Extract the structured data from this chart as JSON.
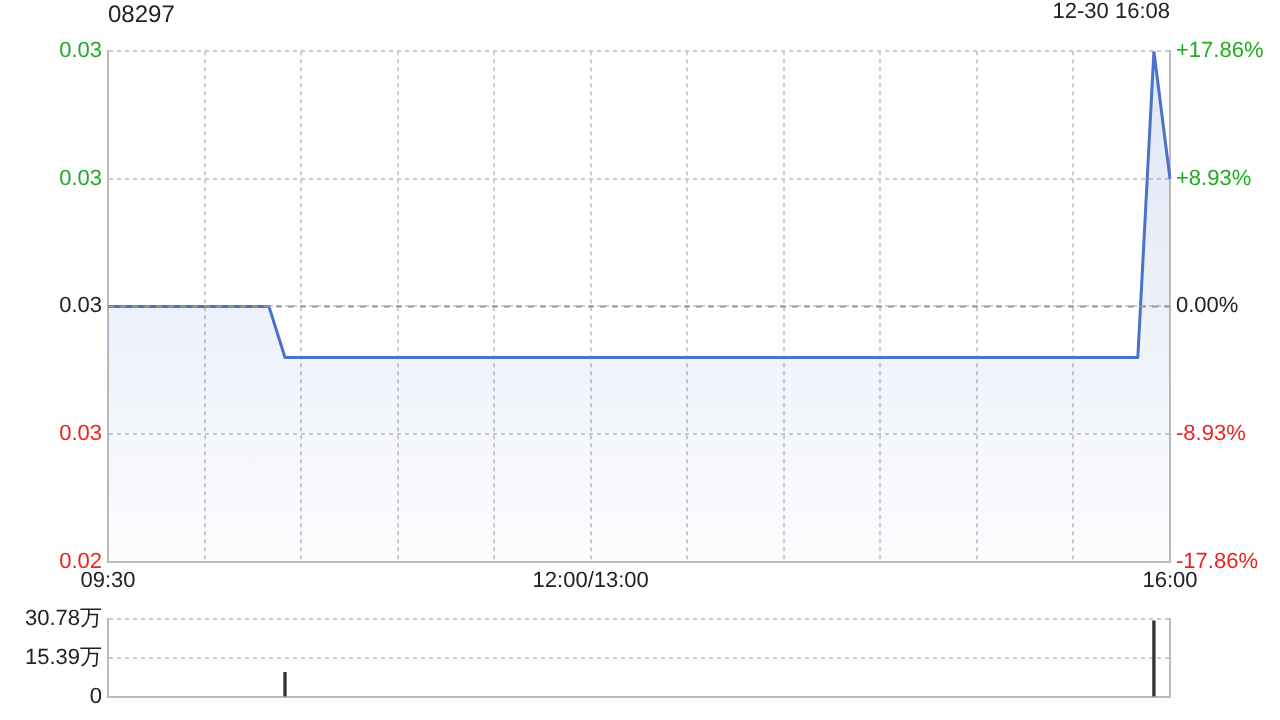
{
  "chart_data": [
    {
      "type": "area",
      "title": "08297",
      "annotations": [
        "12-30 16:08"
      ],
      "categories": [
        "09:30",
        null,
        null,
        null,
        null,
        null,
        null,
        null,
        null,
        null,
        null,
        null,
        null,
        null,
        null,
        null,
        null,
        null,
        null,
        null,
        null,
        null,
        null,
        null,
        null,
        null,
        null,
        null,
        null,
        null,
        "12:00/13:00",
        null,
        null,
        null,
        null,
        null,
        null,
        null,
        null,
        null,
        null,
        null,
        null,
        null,
        null,
        null,
        null,
        null,
        null,
        null,
        null,
        null,
        null,
        null,
        null,
        null,
        null,
        null,
        null,
        null,
        null,
        null,
        null,
        null,
        null,
        null,
        "16:00"
      ],
      "series": [
        {
          "color": "#4a72c8",
          "values": [
            0.028,
            0.028,
            0.028,
            0.028,
            0.028,
            0.028,
            0.028,
            0.028,
            0.028,
            0.028,
            0.028,
            0.027,
            0.027,
            0.027,
            0.027,
            0.027,
            0.027,
            0.027,
            0.027,
            0.027,
            0.027,
            0.027,
            0.027,
            0.027,
            0.027,
            0.027,
            0.027,
            0.027,
            0.027,
            0.027,
            0.027,
            0.027,
            0.027,
            0.027,
            0.027,
            0.027,
            0.027,
            0.027,
            0.027,
            0.027,
            0.027,
            0.027,
            0.027,
            0.027,
            0.027,
            0.027,
            0.027,
            0.027,
            0.027,
            0.027,
            0.027,
            0.027,
            0.027,
            0.027,
            0.027,
            0.027,
            0.027,
            0.027,
            0.027,
            0.027,
            0.027,
            0.027,
            0.027,
            0.027,
            0.027,
            0.033,
            0.0305
          ]
        }
      ],
      "ylim": [
        0.023,
        0.033
      ],
      "yticks": [
        {
          "value": 0.023,
          "label": "0.02"
        },
        {
          "value": 0.0255,
          "label": "0.03"
        },
        {
          "value": 0.028,
          "label": "0.03"
        },
        {
          "value": 0.0305,
          "label": "0.03"
        },
        {
          "value": 0.033,
          "label": "0.03"
        }
      ],
      "y2lim": [
        -17.86,
        17.86
      ],
      "y2ticks": [
        {
          "value": -17.86,
          "label": "-17.86%"
        },
        {
          "value": -8.93,
          "label": "-8.93%"
        },
        {
          "value": 0,
          "label": "0.00%"
        },
        {
          "value": 8.93,
          "label": "+8.93%"
        },
        {
          "value": 17.86,
          "label": "+17.86%"
        }
      ],
      "ref_lines": [
        {
          "axis": "y",
          "value": 0.028,
          "color": "#999999",
          "line_style": "dashed"
        }
      ],
      "grid": true,
      "legend": false
    },
    {
      "type": "bar",
      "categories": [
        null,
        null,
        null,
        null,
        null,
        null,
        null,
        null,
        null,
        null,
        null,
        null,
        null,
        null,
        null,
        null,
        null,
        null,
        null,
        null,
        null,
        null,
        null,
        null,
        null,
        null,
        null,
        null,
        null,
        null,
        null,
        null,
        null,
        null,
        null,
        null,
        null,
        null,
        null,
        null,
        null,
        null,
        null,
        null,
        null,
        null,
        null,
        null,
        null,
        null,
        null,
        null,
        null,
        null,
        null,
        null,
        null,
        null,
        null,
        null,
        null,
        null,
        null,
        null,
        null,
        null,
        null
      ],
      "series": [
        {
          "color": "#333333",
          "values": [
            null,
            null,
            null,
            null,
            null,
            null,
            null,
            null,
            null,
            null,
            null,
            9.6,
            null,
            null,
            null,
            null,
            null,
            null,
            null,
            null,
            null,
            null,
            null,
            null,
            null,
            null,
            null,
            null,
            null,
            null,
            null,
            null,
            null,
            null,
            null,
            null,
            null,
            null,
            null,
            null,
            null,
            null,
            null,
            null,
            null,
            null,
            null,
            null,
            null,
            null,
            null,
            null,
            null,
            null,
            null,
            null,
            null,
            null,
            null,
            null,
            null,
            null,
            null,
            null,
            null,
            30,
            null
          ]
        }
      ],
      "ylim": [
        0,
        30.78
      ],
      "yticks": [
        0,
        {
          "value": 15.39,
          "label": "15.39万"
        },
        {
          "value": 30.78,
          "label": "30.78万"
        }
      ],
      "tick_labels": "y",
      "grid": "y",
      "legend": false
    }
  ]
}
